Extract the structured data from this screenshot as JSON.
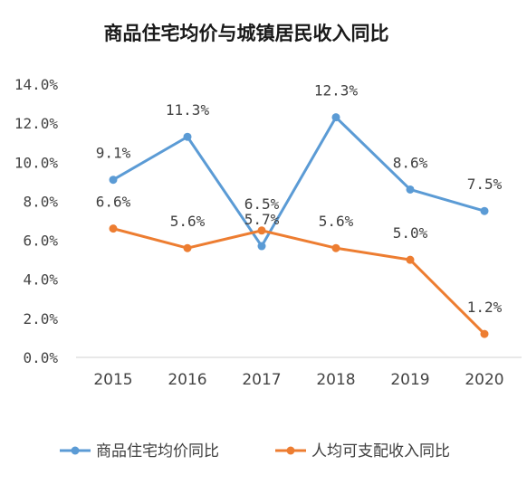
{
  "chart_data": {
    "type": "line",
    "title": "商品住宅均价与城镇居民收入同比",
    "xlabel": "",
    "ylabel": "",
    "categories": [
      "2015",
      "2016",
      "2017",
      "2018",
      "2019",
      "2020"
    ],
    "ylim": [
      0,
      14
    ],
    "yticks": [
      "0.0%",
      "2.0%",
      "4.0%",
      "6.0%",
      "8.0%",
      "10.0%",
      "12.0%",
      "14.0%"
    ],
    "grid": false,
    "legend_position": "bottom",
    "series": [
      {
        "name": "商品住宅均价同比",
        "color": "#5b9bd5",
        "values": [
          9.1,
          11.3,
          5.7,
          12.3,
          8.6,
          7.5
        ],
        "labels": [
          "9.1%",
          "11.3%",
          "5.7%",
          "12.3%",
          "8.6%",
          "7.5%"
        ]
      },
      {
        "name": "人均可支配收入同比",
        "color": "#ed7d31",
        "values": [
          6.6,
          5.6,
          6.5,
          5.6,
          5.0,
          1.2
        ],
        "labels": [
          "6.6%",
          "5.6%",
          "6.5%",
          "5.6%",
          "5.0%",
          "1.2%"
        ]
      }
    ]
  }
}
